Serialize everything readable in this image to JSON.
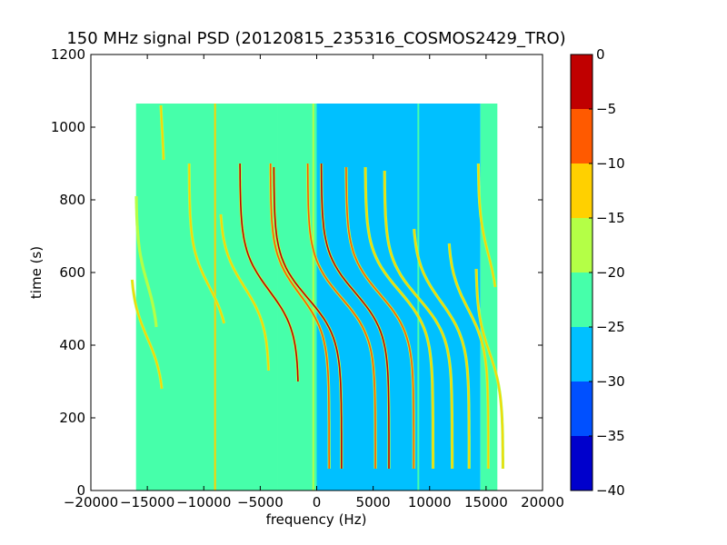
{
  "chart_data": [
    {
      "type": "heatmap",
      "title": "150 MHz signal PSD (20120815_235316_COSMOS2429_TRO)",
      "xlabel": "frequency (Hz)",
      "ylabel": "time (s)",
      "xlim": [
        -20000,
        20000
      ],
      "ylim": [
        0,
        1200
      ],
      "xticks": [
        -20000,
        -15000,
        -10000,
        -5000,
        0,
        5000,
        10000,
        15000,
        20000
      ],
      "xtick_labels": [
        "−20000",
        "−15000",
        "−10000",
        "−5000",
        "0",
        "5000",
        "10000",
        "15000",
        "20000"
      ],
      "yticks": [
        0,
        200,
        400,
        600,
        800,
        1000,
        1200
      ],
      "ytick_labels": [
        "0",
        "200",
        "400",
        "600",
        "800",
        "1000",
        "1200"
      ],
      "data_extent": {
        "x": [
          -16000,
          16000
        ],
        "y": [
          0,
          1065
        ]
      },
      "background_regions": [
        {
          "x": [
            -16000,
            -3500
          ],
          "level": -22.5
        },
        {
          "x": [
            -3500,
            0
          ],
          "level": -25
        },
        {
          "x": [
            0,
            14500
          ],
          "level": -27.5
        },
        {
          "x": [
            14500,
            16000
          ],
          "level": -25
        }
      ],
      "vertical_lines": [
        {
          "x": -9000,
          "level": -12.5
        },
        {
          "x": -300,
          "level": -20
        },
        {
          "x": 9000,
          "level": -22.5
        }
      ],
      "tracks": [
        {
          "x_mid": -15000,
          "y_mid": 420,
          "amplitude": 1500,
          "y_range": [
            280,
            580
          ],
          "peak_level": -15
        },
        {
          "x_mid": -15000,
          "y_mid": 570,
          "amplitude": 1000,
          "y_range": [
            450,
            810
          ],
          "peak_level": -20
        },
        {
          "x_mid": -13700,
          "y_mid": 1000,
          "amplitude": 200,
          "y_range": [
            910,
            1060
          ],
          "peak_level": -15
        },
        {
          "x_mid": -9500,
          "y_mid": 560,
          "amplitude": 1800,
          "y_range": [
            460,
            900
          ],
          "peak_level": -15
        },
        {
          "x_mid": -6400,
          "y_mid": 560,
          "amplitude": 2200,
          "y_range": [
            330,
            760
          ],
          "peak_level": -15
        },
        {
          "x_mid": -4200,
          "y_mid": 550,
          "amplitude": 2600,
          "y_range": [
            300,
            900
          ],
          "peak_level": -5
        },
        {
          "x_mid": -1500,
          "y_mid": 540,
          "amplitude": 2600,
          "y_range": [
            60,
            900
          ],
          "peak_level": -10
        },
        {
          "x_mid": -800,
          "y_mid": 530,
          "amplitude": 3000,
          "y_range": [
            60,
            890
          ],
          "peak_level": -5
        },
        {
          "x_mid": 2200,
          "y_mid": 530,
          "amplitude": 3000,
          "y_range": [
            60,
            900
          ],
          "peak_level": -10
        },
        {
          "x_mid": 3400,
          "y_mid": 545,
          "amplitude": 3000,
          "y_range": [
            60,
            900
          ],
          "peak_level": -5
        },
        {
          "x_mid": 5600,
          "y_mid": 540,
          "amplitude": 3000,
          "y_range": [
            60,
            890
          ],
          "peak_level": -10
        },
        {
          "x_mid": 7300,
          "y_mid": 550,
          "amplitude": 3000,
          "y_range": [
            60,
            890
          ],
          "peak_level": -15
        },
        {
          "x_mid": 9000,
          "y_mid": 530,
          "amplitude": 3000,
          "y_range": [
            60,
            880
          ],
          "peak_level": -15
        },
        {
          "x_mid": 11000,
          "y_mid": 520,
          "amplitude": 2500,
          "y_range": [
            60,
            720
          ],
          "peak_level": -15
        },
        {
          "x_mid": 13400,
          "y_mid": 500,
          "amplitude": 1800,
          "y_range": [
            60,
            680
          ],
          "peak_level": -15
        },
        {
          "x_mid": 15300,
          "y_mid": 380,
          "amplitude": 1200,
          "y_range": [
            60,
            610
          ],
          "peak_level": -15
        },
        {
          "x_mid": 15200,
          "y_mid": 650,
          "amplitude": 900,
          "y_range": [
            560,
            900
          ],
          "peak_level": -15
        }
      ],
      "colorbar": {
        "range": [
          -40,
          0
        ],
        "ticks": [
          0,
          -5,
          -10,
          -15,
          -20,
          -25,
          -30,
          -35,
          -40
        ],
        "tick_labels": [
          "0",
          "−5",
          "−10",
          "−15",
          "−20",
          "−25",
          "−30",
          "−35",
          "−40"
        ],
        "levels": [
          {
            "from": -5,
            "to": 0,
            "color": "#c00000"
          },
          {
            "from": -10,
            "to": -5,
            "color": "#ff5a00"
          },
          {
            "from": -15,
            "to": -10,
            "color": "#ffd000"
          },
          {
            "from": -20,
            "to": -15,
            "color": "#b4ff46"
          },
          {
            "from": -25,
            "to": -20,
            "color": "#46ffaa"
          },
          {
            "from": -30,
            "to": -25,
            "color": "#00c0ff"
          },
          {
            "from": -35,
            "to": -30,
            "color": "#0050ff"
          },
          {
            "from": -40,
            "to": -35,
            "color": "#0000cc"
          }
        ]
      }
    }
  ]
}
